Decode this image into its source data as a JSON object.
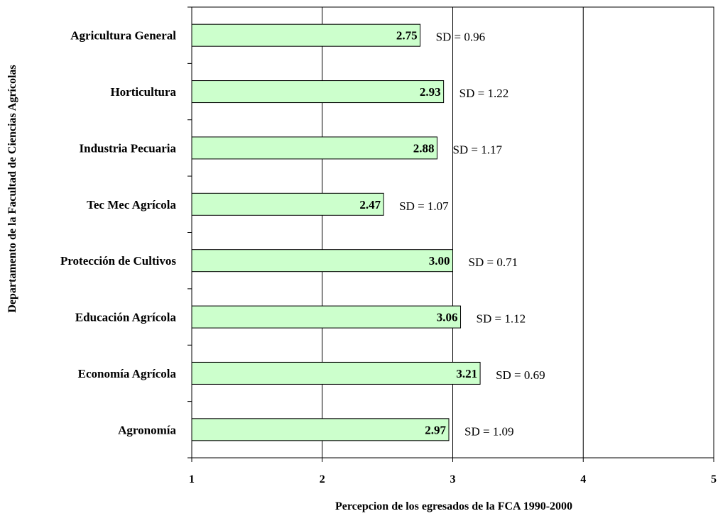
{
  "chart_data": {
    "type": "bar",
    "orientation": "horizontal",
    "xlabel": "Percepcion de los egresados de la FCA 1990-2000",
    "ylabel": "Departamento de la Facultad de Ciencias Agrícolas",
    "xlim": [
      1,
      5
    ],
    "x_ticks": [
      "1",
      "2",
      "3",
      "4",
      "5"
    ],
    "grid": "vertical major gridlines",
    "bar_color": "#ccffcc",
    "bar_edge_color": "#000000",
    "categories": [
      "Agricultura General",
      "Horticultura",
      "Industria Pecuaria",
      "Tec Mec Agrícola",
      "Protección de Cultivos",
      "Educación Agrícola",
      "Economía Agrícola",
      "Agronomía"
    ],
    "values": [
      2.75,
      2.93,
      2.88,
      2.47,
      3.0,
      3.06,
      3.21,
      2.97
    ],
    "value_labels": [
      "2.75",
      "2.93",
      "2.88",
      "2.47",
      "3.00",
      "3.06",
      "3.21",
      "2.97"
    ],
    "sd_labels": [
      "SD = 0.96",
      "SD = 1.22",
      "SD = 1.17",
      "SD = 1.07",
      "SD = 0.71",
      "SD = 1.12",
      "SD = 0.69",
      "SD = 1.09"
    ]
  }
}
